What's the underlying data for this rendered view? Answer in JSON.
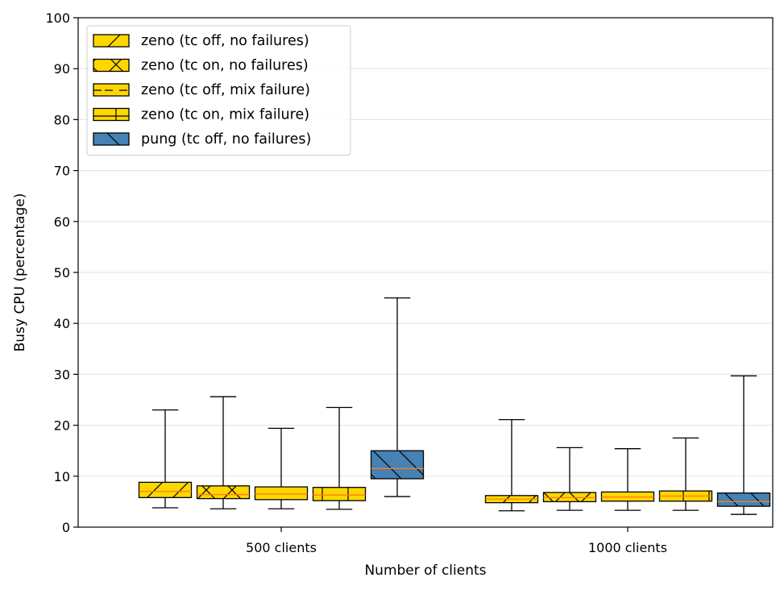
{
  "chart_data": {
    "type": "box",
    "xlabel": "Number of clients",
    "ylabel": "Busy CPU (percentage)",
    "ylim": [
      0,
      100
    ],
    "yticks": [
      0,
      10,
      20,
      30,
      40,
      50,
      60,
      70,
      80,
      90,
      100
    ],
    "grid": "horizontal",
    "legend_position": "top-left",
    "categories": [
      "500 clients",
      "1000 clients"
    ],
    "series": [
      {
        "name": "zeno (tc off, no failures)",
        "color": "#FFD700",
        "hatch": "forward-diagonal",
        "boxes": [
          {
            "whislo": 3.8,
            "q1": 5.8,
            "med": 7.0,
            "q3": 8.8,
            "whishi": 23.0
          },
          {
            "whislo": 3.2,
            "q1": 4.8,
            "med": 5.5,
            "q3": 6.2,
            "whishi": 21.1
          }
        ]
      },
      {
        "name": "zeno (tc on, no failures)",
        "color": "#FFD700",
        "hatch": "cross",
        "boxes": [
          {
            "whislo": 3.6,
            "q1": 5.6,
            "med": 6.4,
            "q3": 8.1,
            "whishi": 25.6
          },
          {
            "whislo": 3.3,
            "q1": 5.0,
            "med": 5.8,
            "q3": 6.8,
            "whishi": 15.6
          }
        ]
      },
      {
        "name": "zeno (tc off, mix failure)",
        "color": "#FFD700",
        "hatch": "dashed-horizontal",
        "boxes": [
          {
            "whislo": 3.6,
            "q1": 5.4,
            "med": 6.5,
            "q3": 7.9,
            "whishi": 19.4
          },
          {
            "whislo": 3.3,
            "q1": 5.1,
            "med": 5.9,
            "q3": 6.9,
            "whishi": 15.4
          }
        ]
      },
      {
        "name": "zeno (tc on, mix failure)",
        "color": "#FFD700",
        "hatch": "plus",
        "boxes": [
          {
            "whislo": 3.5,
            "q1": 5.2,
            "med": 6.3,
            "q3": 7.8,
            "whishi": 23.5
          },
          {
            "whislo": 3.3,
            "q1": 5.1,
            "med": 6.1,
            "q3": 7.1,
            "whishi": 17.5
          }
        ]
      },
      {
        "name": "pung (tc off, no failures)",
        "color": "#4682B4",
        "hatch": "back-diagonal",
        "boxes": [
          {
            "whislo": 6.0,
            "q1": 9.5,
            "med": 11.5,
            "q3": 15.0,
            "whishi": 45.0
          },
          {
            "whislo": 2.5,
            "q1": 4.1,
            "med": 5.0,
            "q3": 6.7,
            "whishi": 29.7
          }
        ]
      }
    ],
    "median_color": "#FF7F0E"
  }
}
